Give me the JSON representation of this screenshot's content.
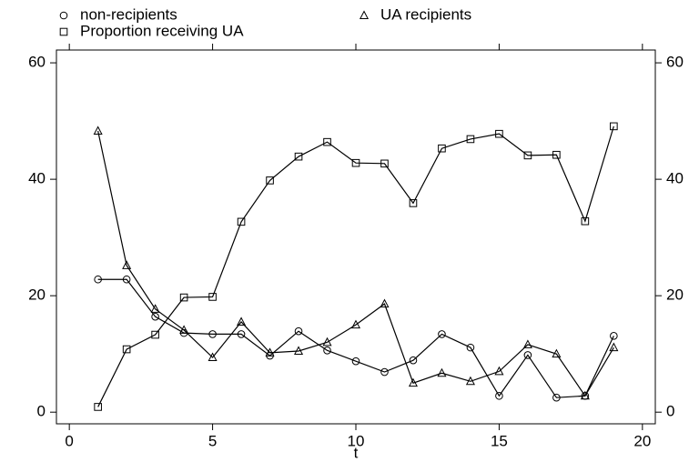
{
  "chart_data": {
    "type": "line",
    "x_label": "t",
    "x": [
      1,
      2,
      3,
      4,
      5,
      6,
      7,
      8,
      9,
      10,
      11,
      12,
      13,
      14,
      15,
      16,
      17,
      18,
      19
    ],
    "xlim": [
      -0.45,
      20.45
    ],
    "xticks": [
      0,
      5,
      10,
      15,
      20
    ],
    "ylim": [
      -2,
      62.2
    ],
    "yticks": [
      0,
      20,
      40,
      60
    ],
    "y2lim": [
      -2,
      62.2
    ],
    "y2ticks": [
      0,
      20,
      40,
      60
    ],
    "series": [
      {
        "name": "non-recipients",
        "marker": "circle",
        "color": "#000000",
        "values": [
          22.8,
          22.8,
          16.4,
          13.6,
          13.4,
          13.4,
          9.7,
          13.9,
          10.6,
          8.75,
          6.9,
          8.9,
          13.4,
          11.1,
          2.8,
          9.8,
          2.5,
          2.8,
          13.1
        ]
      },
      {
        "name": "UA recipients",
        "marker": "triangle",
        "color": "#000000",
        "values": [
          48.3,
          25.2,
          17.7,
          14.1,
          9.4,
          15.5,
          10.2,
          10.5,
          12.0,
          15.0,
          18.6,
          5.0,
          6.7,
          5.3,
          7.0,
          11.6,
          10.0,
          2.8,
          11.1
        ]
      },
      {
        "name": "Proportion receiving UA",
        "marker": "square",
        "color": "#000000",
        "values": [
          0.9,
          10.8,
          13.3,
          19.7,
          19.8,
          32.7,
          39.8,
          43.9,
          46.4,
          42.8,
          42.7,
          35.9,
          45.3,
          46.9,
          47.8,
          44.1,
          44.2,
          32.8,
          49.1
        ]
      }
    ]
  }
}
